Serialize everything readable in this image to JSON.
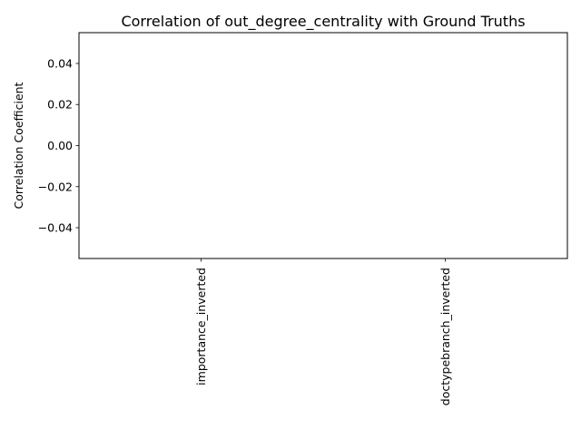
{
  "chart_data": {
    "type": "bar",
    "title": "Correlation of out_degree_centrality with Ground Truths",
    "xlabel": "",
    "ylabel": "Correlation Coefficient",
    "categories": [
      "importance_inverted",
      "doctypebranch_inverted"
    ],
    "values": [
      0,
      0
    ],
    "ylim": [
      -0.055,
      0.055
    ],
    "yticks": [
      -0.04,
      -0.02,
      0.0,
      0.02,
      0.04
    ],
    "ytick_labels": [
      "−0.04",
      "−0.02",
      "0.00",
      "0.02",
      "0.04"
    ],
    "grid": false,
    "legend": "none",
    "bar_color": "#1f77b4"
  }
}
